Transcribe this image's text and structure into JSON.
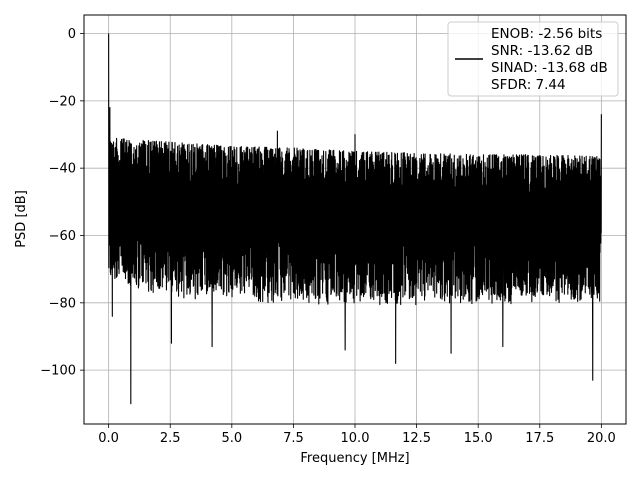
{
  "chart_data": {
    "type": "line",
    "title": "",
    "xlabel": "Frequency [MHz]",
    "ylabel": "PSD [dB]",
    "xlim": [
      -1.0,
      21.0
    ],
    "ylim": [
      -116,
      5.5
    ],
    "grid": true,
    "xticks": [
      0.0,
      2.5,
      5.0,
      7.5,
      10.0,
      12.5,
      15.0,
      17.5,
      20.0
    ],
    "xtick_labels": [
      "0.0",
      "2.5",
      "5.0",
      "7.5",
      "10.0",
      "12.5",
      "15.0",
      "17.5",
      "20.0"
    ],
    "yticks": [
      0,
      -20,
      -40,
      -60,
      -80,
      -100
    ],
    "ytick_labels": [
      "0",
      "−20",
      "−40",
      "−60",
      "−80",
      "−100"
    ],
    "series": [
      {
        "color": "#000000",
        "description": "dense noise-like power spectral density trace",
        "x_range": [
          0.0,
          20.0
        ],
        "upper_envelope": [
          [
            0.0,
            -31
          ],
          [
            2.0,
            -32
          ],
          [
            5.0,
            -33.5
          ],
          [
            7.5,
            -34
          ],
          [
            10.0,
            -35
          ],
          [
            12.5,
            -35.5
          ],
          [
            15.0,
            -36
          ],
          [
            17.5,
            -36
          ],
          [
            20.0,
            -36.5
          ]
        ],
        "lower_envelope": [
          [
            0.0,
            -70
          ],
          [
            2.0,
            -74
          ],
          [
            5.0,
            -76
          ],
          [
            10.0,
            -77
          ],
          [
            15.0,
            -77
          ],
          [
            20.0,
            -76
          ]
        ],
        "peaks": [
          {
            "x": 0.0,
            "y": 0
          },
          {
            "x": 0.05,
            "y": -22
          },
          {
            "x": 6.85,
            "y": -29
          },
          {
            "x": 10.0,
            "y": -30
          },
          {
            "x": 20.0,
            "y": -24
          }
        ],
        "dips": [
          {
            "x": 0.9,
            "y": -110
          },
          {
            "x": 0.15,
            "y": -84
          },
          {
            "x": 11.65,
            "y": -98
          },
          {
            "x": 19.65,
            "y": -103
          },
          {
            "x": 4.2,
            "y": -93
          },
          {
            "x": 2.55,
            "y": -92
          },
          {
            "x": 13.9,
            "y": -95
          },
          {
            "x": 9.6,
            "y": -94
          },
          {
            "x": 16.0,
            "y": -93
          }
        ]
      }
    ],
    "legend": {
      "location": "top-right",
      "lines": [
        "ENOB: -2.56 bits",
        "SNR: -13.62 dB",
        "SINAD: -13.68 dB",
        "SFDR: 7.44"
      ]
    }
  }
}
